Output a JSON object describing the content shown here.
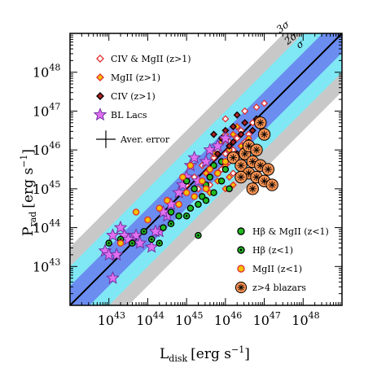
{
  "chart_data": {
    "type": "scatter",
    "x_scale": "log",
    "y_scale": "log",
    "xlim": [
      1e+42,
      1e+49
    ],
    "ylim": [
      1e+42,
      1e+49
    ],
    "xlabel": {
      "main": "L",
      "sub": "disk",
      "unit": "[erg s",
      "exp": "−1",
      "close": "]"
    },
    "ylabel": {
      "main": "P",
      "sub": "rad",
      "unit": "[erg s",
      "exp": "−1",
      "close": "]"
    },
    "x_ticks": [
      {
        "value": 1e+43,
        "base": "10",
        "exp": "43"
      },
      {
        "value": 1e+44,
        "base": "10",
        "exp": "44"
      },
      {
        "value": 1e+45,
        "base": "10",
        "exp": "45"
      },
      {
        "value": 1e+46,
        "base": "10",
        "exp": "46"
      },
      {
        "value": 1e+47,
        "base": "10",
        "exp": "47"
      },
      {
        "value": 1e+48,
        "base": "10",
        "exp": "48"
      }
    ],
    "y_ticks": [
      {
        "value": 1e+43,
        "base": "10",
        "exp": "43"
      },
      {
        "value": 1e+44,
        "base": "10",
        "exp": "44"
      },
      {
        "value": 1e+45,
        "base": "10",
        "exp": "45"
      },
      {
        "value": 1e+46,
        "base": "10",
        "exp": "46"
      },
      {
        "value": 1e+47,
        "base": "10",
        "exp": "47"
      },
      {
        "value": 1e+48,
        "base": "10",
        "exp": "48"
      }
    ],
    "relation": {
      "slope": 1.0,
      "intercept_log": 0.0,
      "sigma_dex": [
        0.5,
        1.0,
        1.5
      ]
    },
    "band_labels": [
      "σ",
      "2σ",
      "3σ"
    ],
    "band_colors": {
      "1": "#6b8df0",
      "2": "#80e8f5",
      "3": "#c8c8c8",
      "line": "#000000"
    },
    "error_bar": {
      "label": "Aver. error",
      "x_dex": 0.5,
      "y_dex": 0.45
    },
    "legend_top": [
      {
        "label": "CIV & MgII (z>1)",
        "marker": "diamond-open",
        "fill": "#ffffff",
        "stroke": "#e03030"
      },
      {
        "label": "MgII (z>1)",
        "marker": "diamond",
        "fill": "#f5c000",
        "stroke": "#e03030"
      },
      {
        "label": "CIV (z>1)",
        "marker": "diamond",
        "fill": "#b02020",
        "stroke": "#000000"
      },
      {
        "label": "BL Lacs",
        "marker": "star",
        "fill": "#e070f0",
        "stroke": "#7030a0"
      }
    ],
    "legend_bottom": [
      {
        "label": "Hβ & MgII (z<1)",
        "marker": "circle",
        "fill": "#22bb22",
        "stroke": "#000000"
      },
      {
        "label": "Hβ (z<1)",
        "marker": "circle",
        "fill": "#22bb22",
        "stroke": "#000000",
        "inner": "#000000"
      },
      {
        "label": "MgII (z<1)",
        "marker": "circle",
        "fill": "#f5c000",
        "stroke": "#e03030"
      },
      {
        "label": "z>4 blazars",
        "marker": "circle-star",
        "fill": "#f59050",
        "stroke": "#000000"
      }
    ],
    "series": [
      {
        "name": "CIV & MgII (z>1)",
        "marker": "diamond-open",
        "x": [
          45.2,
          45.4,
          45.6,
          45.7,
          45.8,
          45.9,
          46.0,
          46.0,
          46.1,
          46.1,
          46.2,
          46.2,
          46.3,
          46.3,
          46.4,
          46.4,
          46.5,
          46.5,
          46.6,
          46.7,
          46.8,
          46.9,
          47.0,
          45.5,
          45.3,
          45.0,
          46.7,
          46.2,
          46.0,
          45.8
        ],
        "y": [
          45.3,
          45.6,
          45.1,
          45.8,
          46.1,
          45.5,
          45.9,
          46.4,
          46.2,
          45.7,
          46.0,
          46.6,
          45.8,
          46.3,
          46.5,
          45.9,
          46.2,
          47.0,
          46.4,
          46.7,
          47.1,
          46.6,
          47.2,
          45.7,
          45.0,
          45.1,
          46.1,
          45.4,
          46.8,
          46.0
        ]
      },
      {
        "name": "MgII (z>1)",
        "marker": "diamond",
        "x": [
          45.5,
          45.7,
          45.9,
          46.0,
          46.1,
          46.2,
          46.3,
          46.4,
          46.5,
          46.6,
          46.3,
          46.1,
          45.8,
          46.4,
          46.0,
          45.6,
          45.4,
          46.2,
          46.5,
          46.7
        ],
        "y": [
          45.4,
          45.9,
          46.2,
          45.6,
          46.0,
          46.4,
          45.7,
          46.1,
          45.8,
          46.3,
          46.6,
          45.3,
          45.2,
          45.5,
          45.0,
          44.9,
          44.8,
          45.1,
          45.5,
          45.7
        ]
      },
      {
        "name": "CIV (z>1)",
        "marker": "diamond",
        "x": [
          45.8,
          45.9,
          46.0,
          46.1,
          46.2,
          46.3,
          46.4,
          46.5,
          46.6,
          46.7,
          46.8,
          46.3,
          46.5,
          46.0,
          46.2,
          46.6,
          45.7,
          46.9
        ],
        "y": [
          45.9,
          46.3,
          46.5,
          46.1,
          46.6,
          46.9,
          46.4,
          46.7,
          46.2,
          46.5,
          46.8,
          45.9,
          46.0,
          45.7,
          46.2,
          46.1,
          46.4,
          46.6
        ]
      },
      {
        "name": "BL Lacs",
        "marker": "star",
        "x": [
          42.9,
          43.0,
          43.1,
          43.1,
          43.2,
          43.3,
          43.4,
          43.6,
          43.7,
          43.8,
          44.1,
          44.3,
          44.5,
          44.6,
          44.8,
          44.9,
          45.0,
          45.1,
          45.2,
          45.3,
          45.5,
          45.6,
          45.8,
          46.0,
          44.4,
          44.2,
          43.5
        ],
        "y": [
          43.4,
          43.3,
          43.8,
          42.7,
          43.3,
          44.0,
          43.8,
          43.7,
          43.8,
          43.6,
          43.5,
          43.9,
          44.3,
          44.6,
          44.9,
          45.1,
          45.3,
          45.6,
          45.8,
          45.2,
          45.7,
          46.0,
          46.1,
          46.3,
          44.4,
          43.9,
          43.7
        ]
      },
      {
        "name": "Hβ & MgII (z<1)",
        "marker": "circle",
        "x": [
          45.0,
          45.2,
          45.4,
          45.5,
          45.6,
          45.7,
          45.8,
          45.9,
          46.0,
          46.1,
          45.3,
          45.5,
          45.1,
          44.8,
          44.6,
          44.4,
          45.7,
          45.9
        ],
        "y": [
          45.2,
          45.0,
          44.8,
          45.1,
          45.3,
          44.9,
          45.4,
          45.2,
          45.5,
          45.0,
          44.6,
          44.7,
          44.5,
          44.3,
          44.4,
          44.0,
          45.6,
          45.7
        ]
      },
      {
        "name": "Hβ (z<1)",
        "marker": "circle",
        "x": [
          43.0,
          43.3,
          43.6,
          43.9,
          44.1,
          44.3,
          44.6,
          45.0,
          45.3
        ],
        "y": [
          43.6,
          43.7,
          43.6,
          43.9,
          43.7,
          43.6,
          44.1,
          44.3,
          43.8
        ]
      },
      {
        "name": "MgII (z<1)",
        "marker": "circle",
        "x": [
          43.3,
          43.7,
          44.0,
          44.3,
          44.5,
          44.8,
          45.0,
          45.2,
          45.4,
          45.6,
          45.8,
          46.0,
          44.9,
          45.5,
          45.1
        ],
        "y": [
          43.6,
          44.4,
          44.2,
          44.5,
          44.7,
          44.6,
          44.9,
          44.8,
          45.2,
          45.5,
          45.4,
          45.7,
          45.3,
          45.0,
          45.6
        ]
      },
      {
        "name": "z>4 blazars",
        "marker": "circle-star",
        "x": [
          46.2,
          46.4,
          46.5,
          46.6,
          46.7,
          46.8,
          46.9,
          47.0,
          47.1,
          47.2,
          46.6,
          46.8,
          47.0,
          46.4,
          46.9,
          46.7
        ],
        "y": [
          45.8,
          45.6,
          45.9,
          45.4,
          45.7,
          45.3,
          45.6,
          45.2,
          45.5,
          45.1,
          46.1,
          46.0,
          46.4,
          45.3,
          46.7,
          45.0
        ]
      }
    ]
  }
}
